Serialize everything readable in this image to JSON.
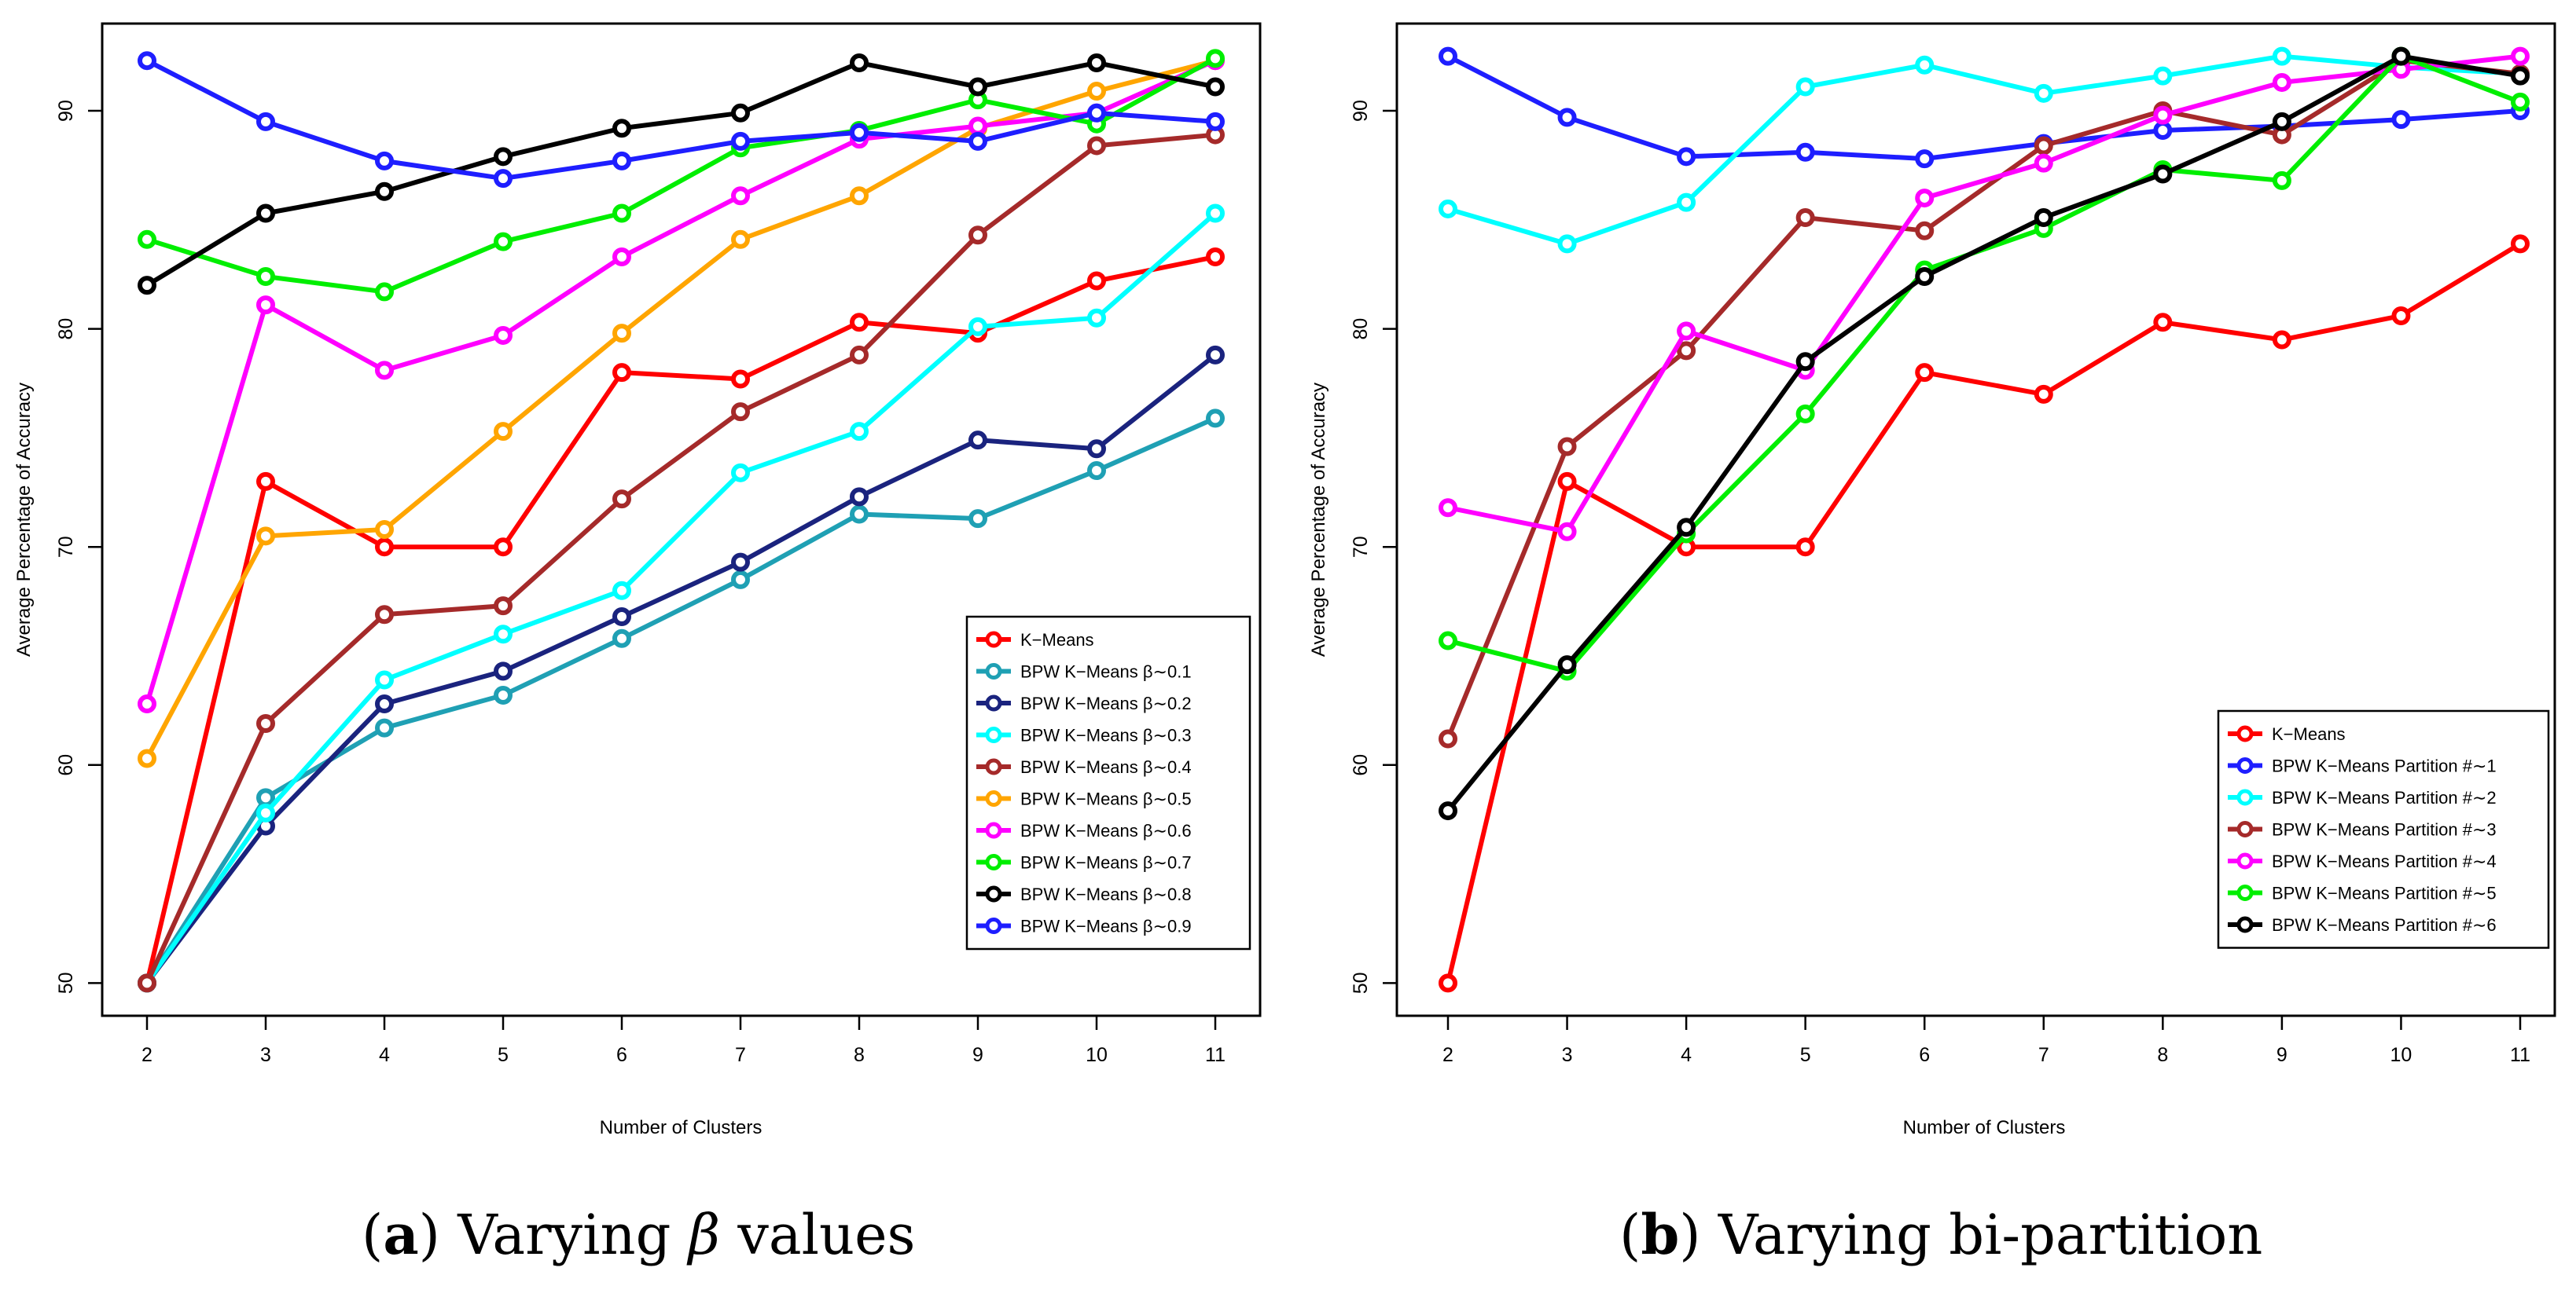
{
  "chart_data": [
    {
      "type": "line",
      "id": "a",
      "title": "",
      "xlabel": "Number of Clusters",
      "ylabel": "Average Percentage of Accuracy",
      "categories": [
        2,
        3,
        4,
        5,
        6,
        7,
        8,
        9,
        10,
        11
      ],
      "xticks": [
        "2",
        "3",
        "4",
        "5",
        "6",
        "7",
        "8",
        "9",
        "10",
        "11"
      ],
      "yticks": [
        50,
        60,
        70,
        80,
        90
      ],
      "ytick_labels": [
        "50",
        "60",
        "70",
        "80",
        "90"
      ],
      "ylim": [
        48.5,
        94
      ],
      "legend_position": "bottom-right",
      "series": [
        {
          "name": "K−Means",
          "color": "#ff0000",
          "values": [
            50,
            73,
            70,
            70,
            78,
            77.7,
            80.3,
            79.8,
            82.2,
            83.3
          ]
        },
        {
          "name": "BPW K−Means β∼0.1",
          "color": "#1fa0b4",
          "values": [
            50,
            58.5,
            61.7,
            63.2,
            65.8,
            68.5,
            71.5,
            71.3,
            73.5,
            75.9
          ]
        },
        {
          "name": "BPW K−Means β∼0.2",
          "color": "#1a237e",
          "values": [
            50,
            57.2,
            62.8,
            64.3,
            66.8,
            69.3,
            72.3,
            74.9,
            74.5,
            78.8
          ]
        },
        {
          "name": "BPW K−Means β∼0.3",
          "color": "#00ffff",
          "values": [
            50,
            57.8,
            63.9,
            66,
            68,
            73.4,
            75.3,
            80.1,
            80.5,
            85.3
          ]
        },
        {
          "name": "BPW K−Means β∼0.4",
          "color": "#a52a2a",
          "values": [
            50,
            61.9,
            66.9,
            67.3,
            72.2,
            76.2,
            78.8,
            84.3,
            88.4,
            88.9
          ]
        },
        {
          "name": "BPW K−Means β∼0.5",
          "color": "#ffa500",
          "values": [
            60.3,
            70.5,
            70.8,
            75.3,
            79.8,
            84.1,
            86.1,
            89.2,
            90.9,
            92.3
          ]
        },
        {
          "name": "BPW K−Means β∼0.6",
          "color": "#ff00ff",
          "values": [
            62.8,
            81.1,
            78.1,
            79.7,
            83.3,
            86.1,
            88.7,
            89.3,
            89.9,
            92.3
          ]
        },
        {
          "name": "BPW K−Means β∼0.7",
          "color": "#00ee00",
          "values": [
            84.1,
            82.4,
            81.7,
            84,
            85.3,
            88.3,
            89.1,
            90.5,
            89.4,
            92.4
          ]
        },
        {
          "name": "BPW K−Means β∼0.8",
          "color": "#000000",
          "values": [
            82,
            85.3,
            86.3,
            87.9,
            89.2,
            89.9,
            92.2,
            91.1,
            92.2,
            91.1
          ]
        },
        {
          "name": "BPW K−Means β∼0.9",
          "color": "#1e1eff",
          "values": [
            92.3,
            89.5,
            87.7,
            86.9,
            87.7,
            88.6,
            89,
            88.6,
            89.9,
            89.5
          ]
        }
      ]
    },
    {
      "type": "line",
      "id": "b",
      "title": "",
      "xlabel": "Number of Clusters",
      "ylabel": "Average Percentage of Accuracy",
      "categories": [
        2,
        3,
        4,
        5,
        6,
        7,
        8,
        9,
        10,
        11
      ],
      "xticks": [
        "2",
        "3",
        "4",
        "5",
        "6",
        "7",
        "8",
        "9",
        "10",
        "11"
      ],
      "yticks": [
        50,
        60,
        70,
        80,
        90
      ],
      "ytick_labels": [
        "50",
        "60",
        "70",
        "80",
        "90"
      ],
      "ylim": [
        48.5,
        94
      ],
      "legend_position": "bottom-right",
      "series": [
        {
          "name": "K−Means",
          "color": "#ff0000",
          "values": [
            50,
            73,
            70,
            70,
            78,
            77,
            80.3,
            79.5,
            80.6,
            83.9
          ]
        },
        {
          "name": "BPW K−Means Partition #∼1",
          "color": "#1e1eff",
          "values": [
            92.5,
            89.7,
            87.9,
            88.1,
            87.8,
            88.5,
            89.1,
            89.3,
            89.6,
            90
          ]
        },
        {
          "name": "BPW K−Means Partition #∼2",
          "color": "#00ffff",
          "values": [
            85.5,
            83.9,
            85.8,
            91.1,
            92.1,
            90.8,
            91.6,
            92.5,
            92,
            91.7
          ]
        },
        {
          "name": "BPW K−Means Partition #∼3",
          "color": "#a52a2a",
          "values": [
            61.2,
            74.6,
            79,
            85.1,
            84.5,
            88.4,
            90,
            88.9,
            92.3,
            91.7
          ]
        },
        {
          "name": "BPW K−Means Partition #∼4",
          "color": "#ff00ff",
          "values": [
            71.8,
            70.7,
            79.9,
            78.1,
            86,
            87.6,
            89.8,
            91.3,
            91.9,
            92.5
          ]
        },
        {
          "name": "BPW K−Means Partition #∼5",
          "color": "#00ee00",
          "values": [
            65.7,
            64.3,
            70.6,
            76.1,
            82.7,
            84.6,
            87.3,
            86.8,
            92.5,
            90.4
          ]
        },
        {
          "name": "BPW K−Means Partition #∼6",
          "color": "#000000",
          "values": [
            57.9,
            64.6,
            70.9,
            78.5,
            82.4,
            85.1,
            87.1,
            89.5,
            92.5,
            91.6
          ]
        }
      ]
    }
  ],
  "captions": {
    "a": {
      "label": "a",
      "pre": "(",
      "post": ") Varying ",
      "symbol": "β",
      "tail": " values"
    },
    "b": {
      "label": "b",
      "pre": "(",
      "post": ") Varying bi-partition"
    }
  }
}
